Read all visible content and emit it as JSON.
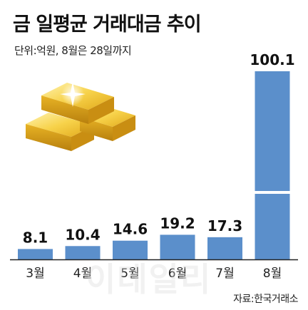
{
  "header": {
    "title": "금 일평균 거래대금 추이",
    "subtitle": "단위:억원, 8월은 28일까지"
  },
  "footer": {
    "source": "자료:한국거래소",
    "watermark": "이데일리"
  },
  "colors": {
    "bar": "#5b8fcb",
    "axis": "#222222",
    "gold": "#f2c12e"
  },
  "icons": {
    "decoration": "gold-bars-icon"
  },
  "chart_data": {
    "type": "bar",
    "title": "금 일평균 거래대금 추이",
    "subtitle": "단위:억원, 8월은 28일까지",
    "categories": [
      "3월",
      "4월",
      "5월",
      "6월",
      "7월",
      "8월"
    ],
    "values": [
      8.1,
      10.4,
      14.6,
      19.2,
      17.3,
      100.1
    ],
    "value_labels": [
      "8.1",
      "10.4",
      "14.6",
      "19.2",
      "17.3",
      "100.1"
    ],
    "axis_break_on": "8월",
    "xlabel": "",
    "ylabel": "",
    "grid": false,
    "legend": "none"
  }
}
